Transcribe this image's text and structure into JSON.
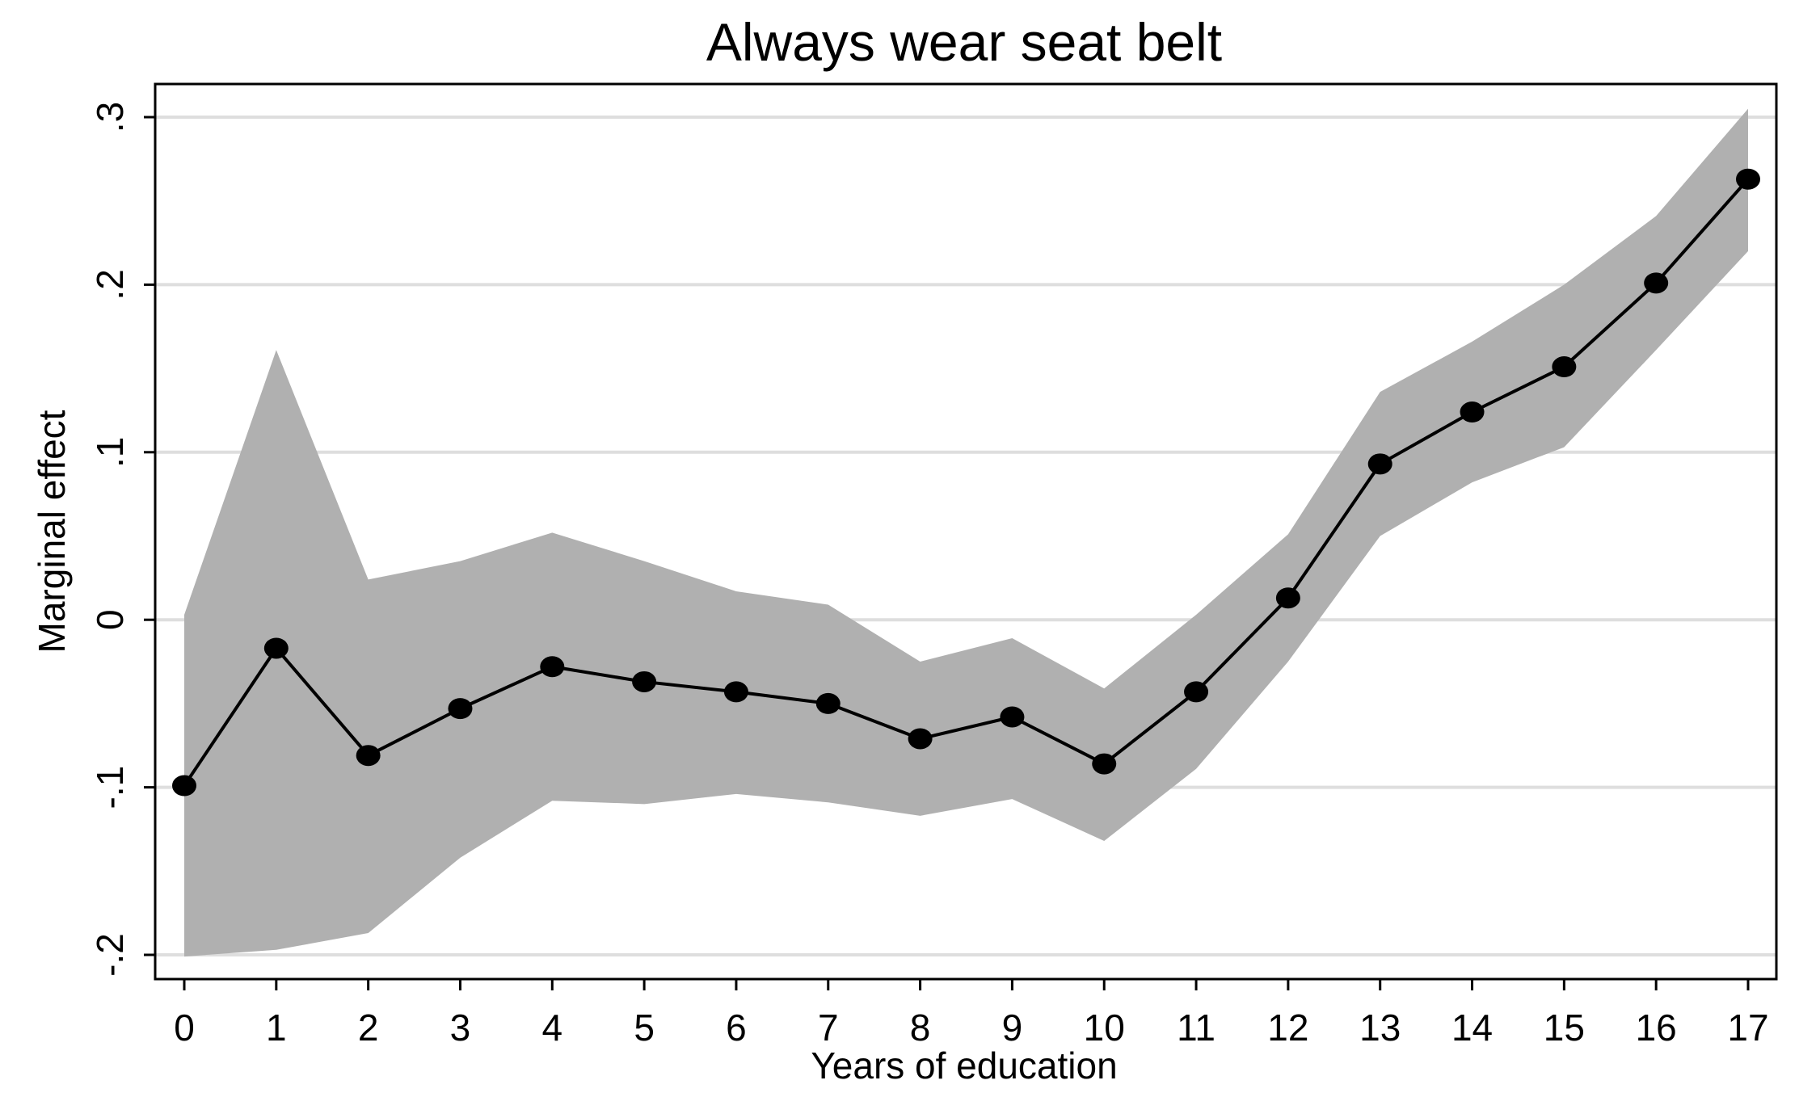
{
  "chart_data": {
    "type": "line",
    "title": "Always wear seat belt",
    "xlabel": "Years of education",
    "ylabel": "Marginal effect",
    "x": [
      0,
      1,
      2,
      3,
      4,
      5,
      6,
      7,
      8,
      9,
      10,
      11,
      12,
      13,
      14,
      15,
      16,
      17
    ],
    "series": [
      {
        "values": [
          -0.099,
          -0.017,
          -0.081,
          -0.053,
          -0.028,
          -0.037,
          -0.043,
          -0.05,
          -0.071,
          -0.058,
          -0.086,
          -0.043,
          0.013,
          0.093,
          0.124,
          0.151,
          0.201,
          0.263
        ]
      }
    ],
    "band": {
      "upper": [
        0.003,
        0.161,
        0.024,
        0.035,
        0.052,
        0.035,
        0.017,
        0.009,
        -0.025,
        -0.011,
        -0.041,
        0.003,
        0.051,
        0.136,
        0.166,
        0.2,
        0.241,
        0.305
      ],
      "lower": [
        -0.201,
        -0.197,
        -0.187,
        -0.142,
        -0.108,
        -0.11,
        -0.104,
        -0.109,
        -0.117,
        -0.107,
        -0.132,
        -0.089,
        -0.025,
        0.05,
        0.082,
        0.103,
        0.161,
        0.22
      ]
    },
    "xlim": [
      0,
      17
    ],
    "ylim": [
      -0.215,
      0.32
    ],
    "yticks": [
      -0.2,
      -0.1,
      0,
      0.1,
      0.2,
      0.3
    ],
    "ytick_labels": [
      "-.2",
      "-.1",
      "0",
      ".1",
      ".2",
      ".3"
    ],
    "xtick_labels": [
      "0",
      "1",
      "2",
      "3",
      "4",
      "5",
      "6",
      "7",
      "8",
      "9",
      "10",
      "11",
      "12",
      "13",
      "14",
      "15",
      "16",
      "17"
    ],
    "grid": true,
    "colors": {
      "band": "#b0b0b0",
      "line": "#000000",
      "grid": "#dedede",
      "background": "#ffffff"
    }
  }
}
